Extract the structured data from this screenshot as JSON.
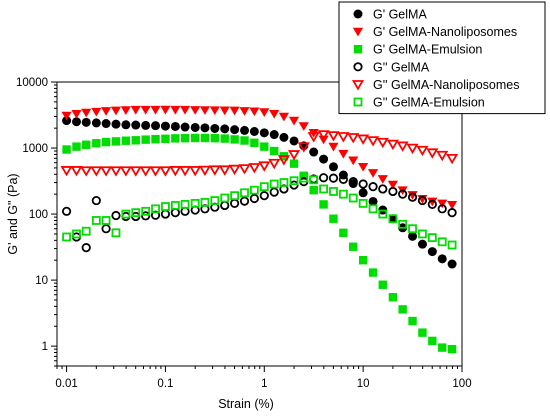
{
  "chart_data": {
    "type": "scatter",
    "title": "",
    "xlabel": "Strain (%)",
    "ylabel": "G' and G\" (Pa)",
    "xscale": "log",
    "yscale": "log",
    "xlim": [
      0.008,
      100
    ],
    "ylim": [
      0.5,
      10000
    ],
    "x_tick_labels": [
      "0.01",
      "0.1",
      "1",
      "10",
      "100"
    ],
    "x_tick_values": [
      0.01,
      0.1,
      1,
      10,
      100
    ],
    "y_tick_labels": [
      "1",
      "10",
      "100",
      "1000",
      "10000"
    ],
    "y_tick_values": [
      1,
      10,
      100,
      1000,
      10000
    ],
    "grid": false,
    "legend_position": "top-right",
    "series": [
      {
        "name": "G' GelMA",
        "color": "#000000",
        "marker": "circle-filled",
        "x": [
          0.01,
          0.0126,
          0.0158,
          0.02,
          0.0251,
          0.0316,
          0.0398,
          0.0501,
          0.0631,
          0.0794,
          0.1,
          0.126,
          0.158,
          0.2,
          0.251,
          0.316,
          0.398,
          0.501,
          0.631,
          0.794,
          1.0,
          1.26,
          1.58,
          2.0,
          2.51,
          3.16,
          3.98,
          5.01,
          6.31,
          7.94,
          10.0,
          12.6,
          15.8,
          20.0,
          25.1,
          31.6,
          39.8,
          50.1,
          63.1,
          79.4
        ],
        "y": [
          2600,
          2500,
          2450,
          2400,
          2350,
          2300,
          2250,
          2230,
          2200,
          2180,
          2150,
          2120,
          2080,
          2050,
          2020,
          1980,
          1950,
          1900,
          1850,
          1780,
          1700,
          1600,
          1450,
          1280,
          1080,
          870,
          680,
          520,
          390,
          290,
          210,
          155,
          115,
          85,
          62,
          46,
          35,
          27,
          21,
          17.5
        ]
      },
      {
        "name": "G' GelMA-Nanoliposomes",
        "color": "#ff0000",
        "marker": "triangle-down-filled",
        "x": [
          0.01,
          0.0126,
          0.0158,
          0.02,
          0.0251,
          0.0316,
          0.0398,
          0.0501,
          0.0631,
          0.0794,
          0.1,
          0.126,
          0.158,
          0.2,
          0.251,
          0.316,
          0.398,
          0.501,
          0.631,
          0.794,
          1.0,
          1.26,
          1.58,
          2.0,
          2.51,
          3.16,
          3.98,
          5.01,
          6.31,
          7.94,
          10.0,
          12.6,
          15.8,
          20.0,
          25.1,
          31.6,
          39.8,
          50.1,
          63.1,
          79.4
        ],
        "y": [
          3100,
          3300,
          3450,
          3550,
          3650,
          3700,
          3750,
          3800,
          3800,
          3800,
          3820,
          3800,
          3800,
          3780,
          3760,
          3740,
          3720,
          3700,
          3650,
          3600,
          3500,
          3300,
          3000,
          2600,
          2150,
          1700,
          1350,
          1050,
          820,
          650,
          520,
          420,
          340,
          280,
          230,
          195,
          170,
          155,
          145,
          138
        ]
      },
      {
        "name": "G' GelMA-Emulsion",
        "color": "#00dd00",
        "marker": "square-filled",
        "x": [
          0.01,
          0.0126,
          0.0158,
          0.02,
          0.0251,
          0.0316,
          0.0398,
          0.0501,
          0.0631,
          0.0794,
          0.1,
          0.126,
          0.158,
          0.2,
          0.251,
          0.316,
          0.398,
          0.501,
          0.631,
          0.794,
          1.0,
          1.26,
          1.58,
          2.0,
          2.51,
          3.16,
          3.98,
          5.01,
          6.31,
          7.94,
          10.0,
          12.6,
          15.8,
          20.0,
          25.1,
          31.6,
          39.8,
          50.1,
          63.1,
          79.4
        ],
        "y": [
          950,
          1050,
          1120,
          1180,
          1230,
          1260,
          1290,
          1310,
          1340,
          1360,
          1380,
          1400,
          1410,
          1420,
          1420,
          1410,
          1390,
          1350,
          1300,
          1200,
          1050,
          900,
          750,
          580,
          380,
          230,
          140,
          85,
          52,
          32,
          20,
          13,
          8.5,
          5.5,
          3.6,
          2.4,
          1.6,
          1.2,
          0.95,
          0.9
        ]
      },
      {
        "name": "G'' GelMA",
        "color": "#000000",
        "marker": "circle-open",
        "x": [
          0.01,
          0.0126,
          0.0158,
          0.02,
          0.0251,
          0.0316,
          0.0398,
          0.0501,
          0.0631,
          0.0794,
          0.1,
          0.126,
          0.158,
          0.2,
          0.251,
          0.316,
          0.398,
          0.501,
          0.631,
          0.794,
          1.0,
          1.26,
          1.58,
          2.0,
          2.51,
          3.16,
          3.98,
          5.01,
          6.31,
          7.94,
          10.0,
          12.6,
          15.8,
          20.0,
          25.1,
          31.6,
          39.8,
          50.1,
          63.1,
          79.4
        ],
        "y": [
          110,
          45,
          31,
          160,
          60,
          95,
          92,
          92,
          94,
          96,
          100,
          105,
          110,
          115,
          120,
          127,
          135,
          145,
          157,
          172,
          190,
          215,
          240,
          275,
          310,
          340,
          355,
          350,
          335,
          310,
          285,
          260,
          240,
          220,
          200,
          180,
          160,
          140,
          120,
          105
        ]
      },
      {
        "name": "G'' GelMA-Nanoliposomes",
        "color": "#ff0000",
        "marker": "triangle-down-open",
        "x": [
          0.01,
          0.0126,
          0.0158,
          0.02,
          0.0251,
          0.0316,
          0.0398,
          0.0501,
          0.0631,
          0.0794,
          0.1,
          0.126,
          0.158,
          0.2,
          0.251,
          0.316,
          0.398,
          0.501,
          0.631,
          0.794,
          1.0,
          1.26,
          1.58,
          2.0,
          2.51,
          3.16,
          3.98,
          5.01,
          6.31,
          7.94,
          10.0,
          12.6,
          15.8,
          20.0,
          25.1,
          31.6,
          39.8,
          50.1,
          63.1,
          79.4
        ],
        "y": [
          460,
          460,
          455,
          455,
          455,
          455,
          455,
          455,
          455,
          455,
          455,
          460,
          460,
          460,
          465,
          470,
          470,
          480,
          490,
          510,
          540,
          590,
          670,
          800,
          1050,
          1500,
          1600,
          1550,
          1500,
          1450,
          1380,
          1300,
          1230,
          1150,
          1080,
          1000,
          930,
          850,
          780,
          700
        ]
      },
      {
        "name": "G'' GelMA-Emulsion",
        "color": "#00dd00",
        "marker": "square-open",
        "x": [
          0.01,
          0.0126,
          0.0158,
          0.02,
          0.0251,
          0.0316,
          0.0398,
          0.0501,
          0.0631,
          0.0794,
          0.1,
          0.126,
          0.158,
          0.2,
          0.251,
          0.316,
          0.398,
          0.501,
          0.631,
          0.794,
          1.0,
          1.26,
          1.58,
          2.0,
          2.51,
          3.16,
          3.98,
          5.01,
          6.31,
          7.94,
          10.0,
          12.6,
          15.8,
          20.0,
          25.1,
          31.6,
          39.8,
          50.1,
          63.1,
          79.4
        ],
        "y": [
          45,
          50,
          55,
          80,
          80,
          52,
          100,
          105,
          110,
          120,
          130,
          135,
          140,
          145,
          150,
          160,
          175,
          190,
          210,
          230,
          260,
          285,
          300,
          320,
          350,
          330,
          240,
          220,
          200,
          175,
          145,
          120,
          100,
          85,
          70,
          60,
          50,
          44,
          38,
          34
        ]
      }
    ]
  }
}
